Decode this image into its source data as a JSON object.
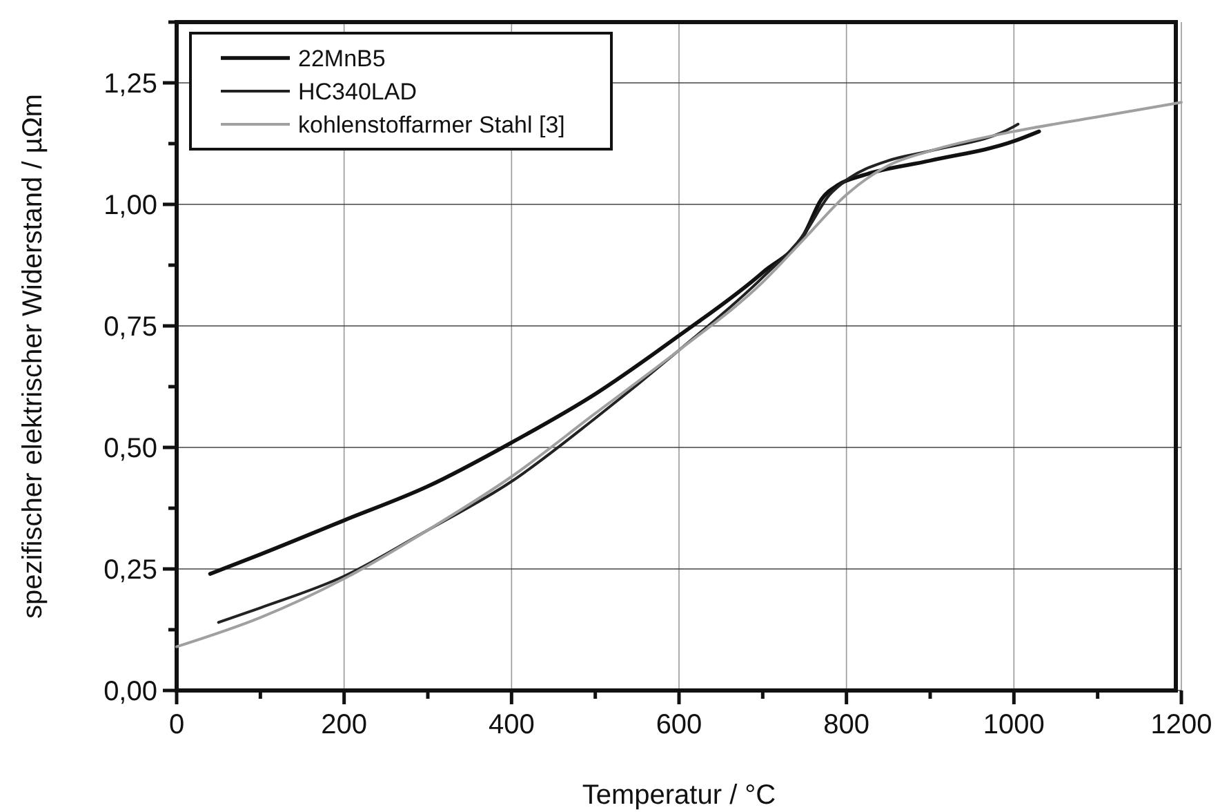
{
  "chart_data": {
    "type": "line",
    "xlabel": "Temperatur / °C",
    "ylabel": "spezifischer elektrischer Widerstand / µΩm",
    "xlim": [
      0,
      1200
    ],
    "xticks": [
      0,
      200,
      400,
      600,
      800,
      1000,
      1200
    ],
    "ylim": [
      0,
      1.375
    ],
    "yticks": [
      {
        "value": 0,
        "label": "0,00"
      },
      {
        "value": 0.25,
        "label": "0,25"
      },
      {
        "value": 0.5,
        "label": "0,50"
      },
      {
        "value": 0.75,
        "label": "0,75"
      },
      {
        "value": 1,
        "label": "1,00"
      },
      {
        "value": 1.25,
        "label": "1,25"
      }
    ],
    "grid": true,
    "legend": "top left",
    "marker": "none",
    "line_style": "solid",
    "series": [
      {
        "name": "22MnB5",
        "color": "#111111",
        "x": [
          40,
          100,
          200,
          300,
          400,
          500,
          600,
          700,
          750,
          770,
          790,
          820,
          900,
          1000,
          1030
        ],
        "values": [
          0.24,
          0.28,
          0.35,
          0.42,
          0.51,
          0.61,
          0.73,
          0.86,
          0.94,
          1.01,
          1.04,
          1.06,
          1.09,
          1.13,
          1.15
        ]
      },
      {
        "name": "HC340LAD",
        "color": "#222222",
        "x": [
          50,
          100,
          200,
          300,
          400,
          500,
          600,
          700,
          750,
          780,
          800,
          850,
          900,
          1000,
          1005
        ],
        "values": [
          0.14,
          0.17,
          0.235,
          0.33,
          0.43,
          0.56,
          0.7,
          0.85,
          0.94,
          1.02,
          1.05,
          1.09,
          1.11,
          1.16,
          1.165
        ]
      },
      {
        "name": "kohlenstoffarmer Stahl [3]",
        "color": "#a0a0a0",
        "x": [
          0,
          100,
          200,
          300,
          400,
          500,
          600,
          700,
          750,
          800,
          850,
          900,
          1000,
          1100,
          1200
        ],
        "values": [
          0.09,
          0.15,
          0.23,
          0.33,
          0.44,
          0.57,
          0.7,
          0.84,
          0.93,
          1.02,
          1.08,
          1.11,
          1.15,
          1.18,
          1.21
        ]
      }
    ]
  }
}
